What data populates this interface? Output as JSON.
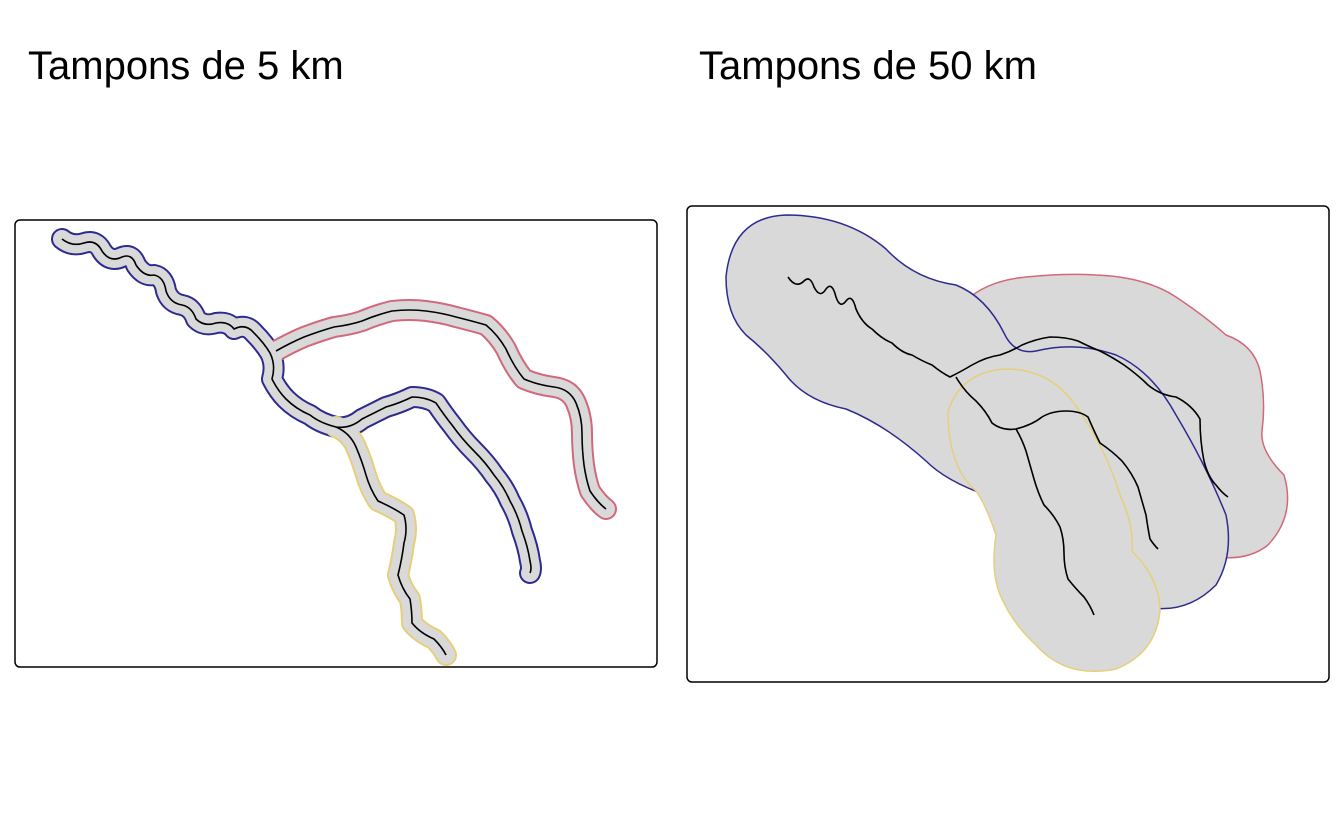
{
  "panels": [
    {
      "title": "Tampons de 5 km"
    },
    {
      "title": "Tampons de 50 km"
    }
  ],
  "colors": {
    "buffer_fill": "#d9d9d9",
    "river_line": "#000000",
    "frame": "#000000",
    "background": "#ffffff",
    "buffer_outlines": [
      "#2e2a8f",
      "#d2697a",
      "#e6cf7a"
    ]
  },
  "legend": null
}
